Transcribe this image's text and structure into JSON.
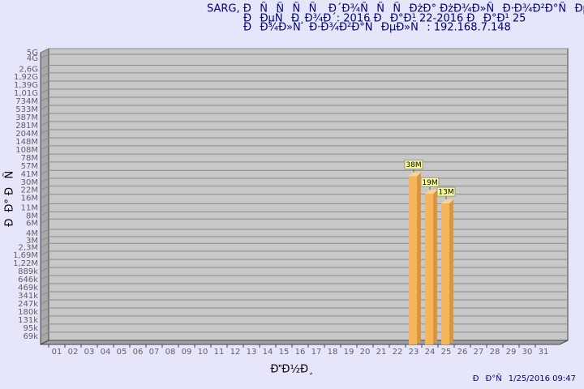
{
  "chart_data": {
    "type": "bar",
    "title": "SARG,  ĐÑÑÑÑ Đ´Đ¾ÑÑÑĐżĐ° ĐżĐ¾Đ»ÑĐ·Đ¾Đ²Đ°ÑĐµĐ»Ñ",
    "subtitle": "ĐĐµÑĐ¸Đ¾Đ´: 2016 ĐĐ°Đ¹ 22-2016 ĐĐ°Đ¹ 25",
    "user_line": "ĐĐ¾Đ»ÑĐ·Đ¾Đ²Đ°ÑĐµĐ»Ñ: 192.168.7.148",
    "x_label": "ĐĐ½Đ¸",
    "y_label": "ĐĐ° ĐÑ",
    "footer": "ĐĐ°Ñ1/25/2016 09:47",
    "categories": [
      "01",
      "02",
      "03",
      "04",
      "05",
      "06",
      "07",
      "08",
      "09",
      "10",
      "11",
      "12",
      "13",
      "14",
      "15",
      "16",
      "17",
      "18",
      "19",
      "20",
      "21",
      "22",
      "23",
      "24",
      "25",
      "26",
      "27",
      "28",
      "29",
      "30",
      "31"
    ],
    "values": [
      null,
      null,
      null,
      null,
      null,
      null,
      null,
      null,
      null,
      null,
      null,
      null,
      null,
      null,
      null,
      null,
      null,
      null,
      null,
      null,
      null,
      null,
      38000000,
      19000000,
      13000000,
      null,
      null,
      null,
      null,
      null,
      null
    ],
    "value_labels": [
      null,
      null,
      null,
      null,
      null,
      null,
      null,
      null,
      null,
      null,
      null,
      null,
      null,
      null,
      null,
      null,
      null,
      null,
      null,
      null,
      null,
      null,
      "38M",
      "19M",
      "13M",
      null,
      null,
      null,
      null,
      null,
      null
    ],
    "color": "#f5b55a",
    "log_scale": true,
    "grid": true,
    "ylim": [
      50000,
      5000000000
    ],
    "yticks": [
      {
        "value": 69000,
        "label": "69k"
      },
      {
        "value": 95000,
        "label": "95k"
      },
      {
        "value": 131000,
        "label": "131k"
      },
      {
        "value": 180000,
        "label": "180k"
      },
      {
        "value": 247000,
        "label": "247k"
      },
      {
        "value": 341000,
        "label": "341k"
      },
      {
        "value": 469000,
        "label": "469k"
      },
      {
        "value": 646000,
        "label": "646k"
      },
      {
        "value": 889000,
        "label": "889k"
      },
      {
        "value": 1220000,
        "label": "1,22M"
      },
      {
        "value": 1690000,
        "label": "1,69M"
      },
      {
        "value": 2300000,
        "label": "2,3M"
      },
      {
        "value": 3000000,
        "label": "3M"
      },
      {
        "value": 4000000,
        "label": "4M"
      },
      {
        "value": 6000000,
        "label": "6M"
      },
      {
        "value": 8000000,
        "label": "8M"
      },
      {
        "value": 11000000,
        "label": "11M"
      },
      {
        "value": 16000000,
        "label": "16M"
      },
      {
        "value": 22000000,
        "label": "22M"
      },
      {
        "value": 30000000,
        "label": "30M"
      },
      {
        "value": 41000000,
        "label": "41M"
      },
      {
        "value": 57000000,
        "label": "57M"
      },
      {
        "value": 78000000,
        "label": "78M"
      },
      {
        "value": 108000000,
        "label": "108M"
      },
      {
        "value": 148000000,
        "label": "148M"
      },
      {
        "value": 204000000,
        "label": "204M"
      },
      {
        "value": 281000000,
        "label": "281M"
      },
      {
        "value": 387000000,
        "label": "387M"
      },
      {
        "value": 533000000,
        "label": "533M"
      },
      {
        "value": 734000000,
        "label": "734M"
      },
      {
        "value": 1010000000,
        "label": "1,01G"
      },
      {
        "value": 1390000000,
        "label": "1,39G"
      },
      {
        "value": 1920000000,
        "label": "1,92G"
      },
      {
        "value": 2600000000,
        "label": "2,6G"
      },
      {
        "value": 4000000000,
        "label": "4G"
      },
      {
        "value": 5000000000,
        "label": "5G"
      }
    ]
  }
}
